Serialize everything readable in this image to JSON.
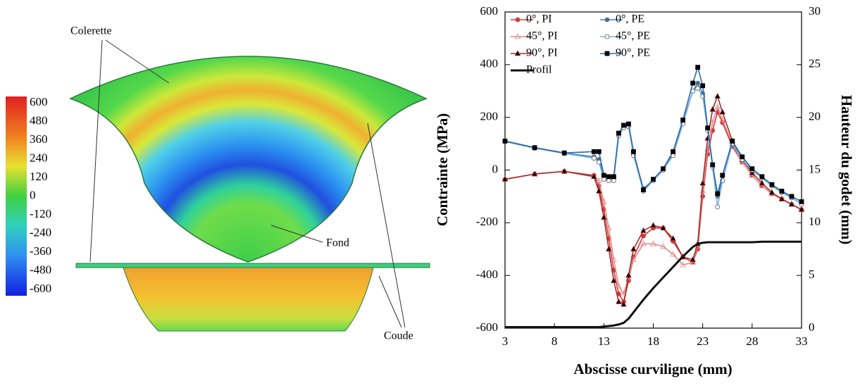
{
  "contour_plot": {
    "colorbar_ticks": [
      600,
      480,
      360,
      240,
      120,
      0,
      -120,
      -240,
      -360,
      -480,
      -600
    ],
    "annotations": [
      "Colerette",
      "Fond",
      "Coude"
    ]
  },
  "chart_data": {
    "type": "line",
    "xlabel": "Abscisse curviligne (mm)",
    "ylabel": "Contrainte (MPa)",
    "y2label": "Hauteur du godet (mm)",
    "x": [
      3,
      6,
      9,
      12,
      12.5,
      13,
      13.5,
      14,
      14.5,
      15,
      15.5,
      16,
      17,
      18,
      19,
      20,
      21,
      22,
      22.5,
      23,
      23.5,
      24,
      24.5,
      25,
      26,
      27,
      28,
      29,
      30,
      31,
      32,
      33
    ],
    "xlim": [
      3,
      33
    ],
    "xticks": [
      3,
      8,
      13,
      18,
      23,
      28,
      33
    ],
    "ylim": [
      -600,
      600
    ],
    "yticks": [
      -600,
      -400,
      -200,
      0,
      200,
      400,
      600
    ],
    "y2lim": [
      0,
      30
    ],
    "y2ticks": [
      0,
      5,
      10,
      15,
      20,
      25,
      30
    ],
    "grid": false,
    "legend": "top-left",
    "series": [
      {
        "name": "0°, PI",
        "color": "#d03a3a",
        "marker": "circle",
        "marker_fill": "#d03a3a",
        "values": [
          -35,
          -15,
          -5,
          -20,
          -60,
          -150,
          -260,
          -380,
          -470,
          -500,
          -420,
          -330,
          -250,
          -220,
          -220,
          -270,
          -330,
          -350,
          -300,
          -100,
          60,
          150,
          220,
          180,
          90,
          30,
          -20,
          -60,
          -90,
          -110,
          -130,
          -150
        ]
      },
      {
        "name": "45°, PI",
        "color": "#e08a8a",
        "marker": "triangle",
        "marker_fill": "none",
        "values": [
          -35,
          -15,
          -5,
          -25,
          -40,
          -120,
          -220,
          -340,
          -440,
          -470,
          -410,
          -340,
          -280,
          -280,
          -290,
          -320,
          -360,
          -350,
          -290,
          -80,
          80,
          180,
          240,
          190,
          100,
          30,
          -20,
          -60,
          -90,
          -110,
          -130,
          -150
        ]
      },
      {
        "name": "90°, PI",
        "color": "#a82a2a",
        "marker": "triangle",
        "marker_fill": "#000000",
        "values": [
          -35,
          -15,
          -5,
          -25,
          -80,
          -180,
          -300,
          -420,
          -500,
          -510,
          -400,
          -300,
          -230,
          -210,
          -220,
          -260,
          -330,
          -340,
          -280,
          -50,
          120,
          230,
          280,
          220,
          110,
          40,
          -10,
          -50,
          -85,
          -110,
          -130,
          -150
        ]
      },
      {
        "name": "0°, PE",
        "color": "#3a7fc0",
        "marker": "circle",
        "marker_fill": "#666666",
        "values": [
          110,
          85,
          65,
          50,
          40,
          -20,
          -30,
          -30,
          130,
          160,
          170,
          60,
          -70,
          -40,
          0,
          60,
          180,
          300,
          330,
          290,
          160,
          20,
          -100,
          -40,
          100,
          40,
          0,
          -30,
          -60,
          -85,
          -105,
          -130
        ]
      },
      {
        "name": "45°, PE",
        "color": "#7ab4e0",
        "marker": "circle",
        "marker_fill": "#ffffff",
        "values": [
          108,
          83,
          63,
          45,
          30,
          -35,
          -40,
          -40,
          130,
          160,
          165,
          55,
          -80,
          -40,
          0,
          55,
          175,
          300,
          310,
          280,
          150,
          10,
          -140,
          -40,
          100,
          40,
          0,
          -30,
          -60,
          -85,
          -105,
          -130
        ]
      },
      {
        "name": "90°, PE",
        "color": "#2a6aa8",
        "marker": "square",
        "marker_fill": "#000000",
        "values": [
          110,
          85,
          65,
          70,
          70,
          -20,
          -25,
          -25,
          140,
          170,
          175,
          70,
          -75,
          -35,
          5,
          70,
          190,
          330,
          390,
          320,
          160,
          20,
          -90,
          -20,
          110,
          50,
          5,
          -25,
          -55,
          -80,
          -100,
          -120
        ]
      },
      {
        "name": "Profil",
        "color": "#111111",
        "axis": "y2",
        "values": [
          0.1,
          0.1,
          0.1,
          0.1,
          0.1,
          0.15,
          0.2,
          0.25,
          0.35,
          0.5,
          0.9,
          1.5,
          2.7,
          3.8,
          4.8,
          5.8,
          6.8,
          7.7,
          8.0,
          8.1,
          8.15,
          8.15,
          8.15,
          8.15,
          8.15,
          8.15,
          8.15,
          8.2,
          8.2,
          8.2,
          8.2,
          8.2
        ]
      }
    ]
  }
}
